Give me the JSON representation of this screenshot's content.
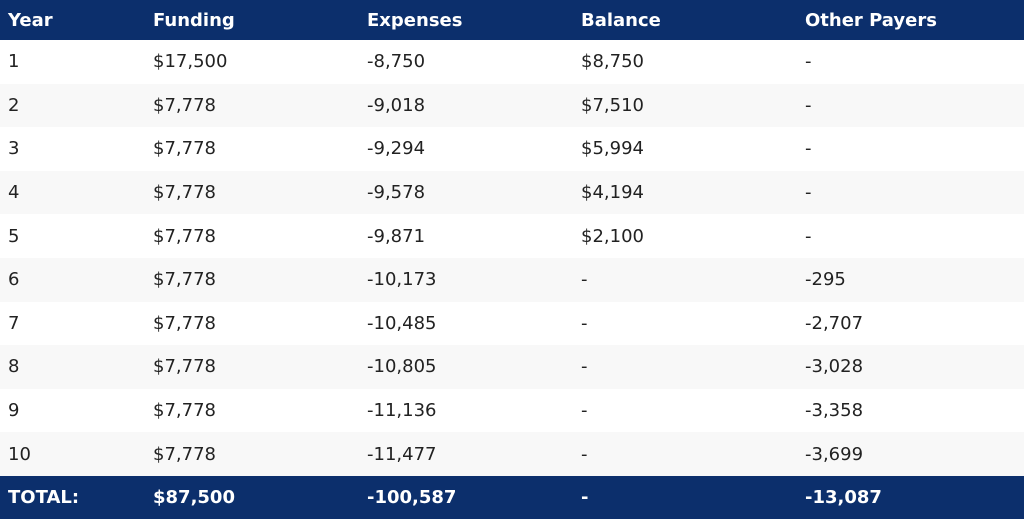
{
  "table": {
    "header": [
      "Year",
      "Funding",
      "Expenses",
      "Balance",
      "Other Payers"
    ],
    "rows": [
      [
        "1",
        "$17,500",
        "-8,750",
        "$8,750",
        "-"
      ],
      [
        "2",
        "$7,778",
        "-9,018",
        "$7,510",
        "-"
      ],
      [
        "3",
        "$7,778",
        "-9,294",
        "$5,994",
        "-"
      ],
      [
        "4",
        "$7,778",
        "-9,578",
        "$4,194",
        "-"
      ],
      [
        "5",
        "$7,778",
        "-9,871",
        "$2,100",
        "-"
      ],
      [
        "6",
        "$7,778",
        "-10,173",
        "-",
        "-295"
      ],
      [
        "7",
        "$7,778",
        "-10,485",
        "-",
        "-2,707"
      ],
      [
        "8",
        "$7,778",
        "-10,805",
        "-",
        "-3,028"
      ],
      [
        "9",
        "$7,778",
        "-11,136",
        "-",
        "-3,358"
      ],
      [
        "10",
        "$7,778",
        "-11,477",
        "-",
        "-3,699"
      ]
    ],
    "footer": [
      "TOTAL:",
      "$87,500",
      "-100,587",
      "-",
      "-13,087"
    ]
  }
}
